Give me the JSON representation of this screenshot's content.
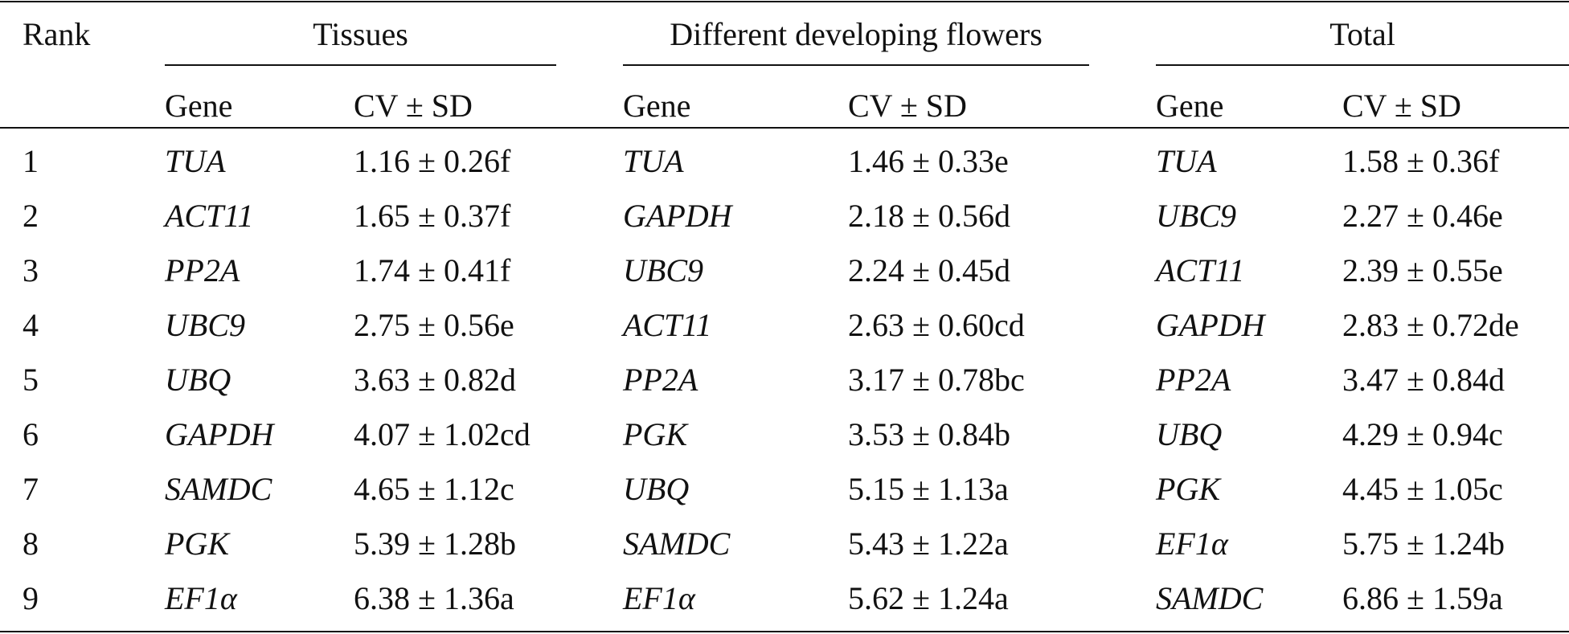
{
  "header": {
    "rank_label": "Rank",
    "groups": [
      {
        "title": "Tissues",
        "gene_label": "Gene",
        "cv_label": "CV ± SD"
      },
      {
        "title": "Different developing flowers",
        "gene_label": "Gene",
        "cv_label": "CV ± SD"
      },
      {
        "title": "Total",
        "gene_label": "Gene",
        "cv_label": "CV ± SD"
      }
    ]
  },
  "rows": [
    {
      "rank": "1",
      "cells": [
        {
          "gene": "TUA",
          "cv": "1.16 ± 0.26f"
        },
        {
          "gene": "TUA",
          "cv": "1.46 ± 0.33e"
        },
        {
          "gene": "TUA",
          "cv": "1.58 ± 0.36f"
        }
      ]
    },
    {
      "rank": "2",
      "cells": [
        {
          "gene": "ACT11",
          "cv": "1.65 ± 0.37f"
        },
        {
          "gene": "GAPDH",
          "cv": "2.18 ± 0.56d"
        },
        {
          "gene": "UBC9",
          "cv": "2.27 ± 0.46e"
        }
      ]
    },
    {
      "rank": "3",
      "cells": [
        {
          "gene": "PP2A",
          "cv": "1.74 ± 0.41f"
        },
        {
          "gene": "UBC9",
          "cv": "2.24 ± 0.45d"
        },
        {
          "gene": "ACT11",
          "cv": "2.39 ± 0.55e"
        }
      ]
    },
    {
      "rank": "4",
      "cells": [
        {
          "gene": "UBC9",
          "cv": "2.75 ± 0.56e"
        },
        {
          "gene": "ACT11",
          "cv": "2.63 ± 0.60cd"
        },
        {
          "gene": "GAPDH",
          "cv": "2.83 ± 0.72de"
        }
      ]
    },
    {
      "rank": "5",
      "cells": [
        {
          "gene": "UBQ",
          "cv": "3.63 ± 0.82d"
        },
        {
          "gene": "PP2A",
          "cv": "3.17 ± 0.78bc"
        },
        {
          "gene": "PP2A",
          "cv": "3.47 ± 0.84d"
        }
      ]
    },
    {
      "rank": "6",
      "cells": [
        {
          "gene": "GAPDH",
          "cv": "4.07 ± 1.02cd"
        },
        {
          "gene": "PGK",
          "cv": "3.53 ± 0.84b"
        },
        {
          "gene": "UBQ",
          "cv": "4.29 ± 0.94c"
        }
      ]
    },
    {
      "rank": "7",
      "cells": [
        {
          "gene": "SAMDC",
          "cv": "4.65 ± 1.12c"
        },
        {
          "gene": "UBQ",
          "cv": "5.15 ± 1.13a"
        },
        {
          "gene": "PGK",
          "cv": "4.45 ± 1.05c"
        }
      ]
    },
    {
      "rank": "8",
      "cells": [
        {
          "gene": "PGK",
          "cv": "5.39 ± 1.28b"
        },
        {
          "gene": "SAMDC",
          "cv": "5.43 ± 1.22a"
        },
        {
          "gene": "EF1α",
          "cv": "5.75 ± 1.24b"
        }
      ]
    },
    {
      "rank": "9",
      "cells": [
        {
          "gene": "EF1α",
          "cv": "6.38 ± 1.36a"
        },
        {
          "gene": "EF1α",
          "cv": "5.62 ± 1.24a"
        },
        {
          "gene": "SAMDC",
          "cv": "6.86 ± 1.59a"
        }
      ]
    }
  ]
}
